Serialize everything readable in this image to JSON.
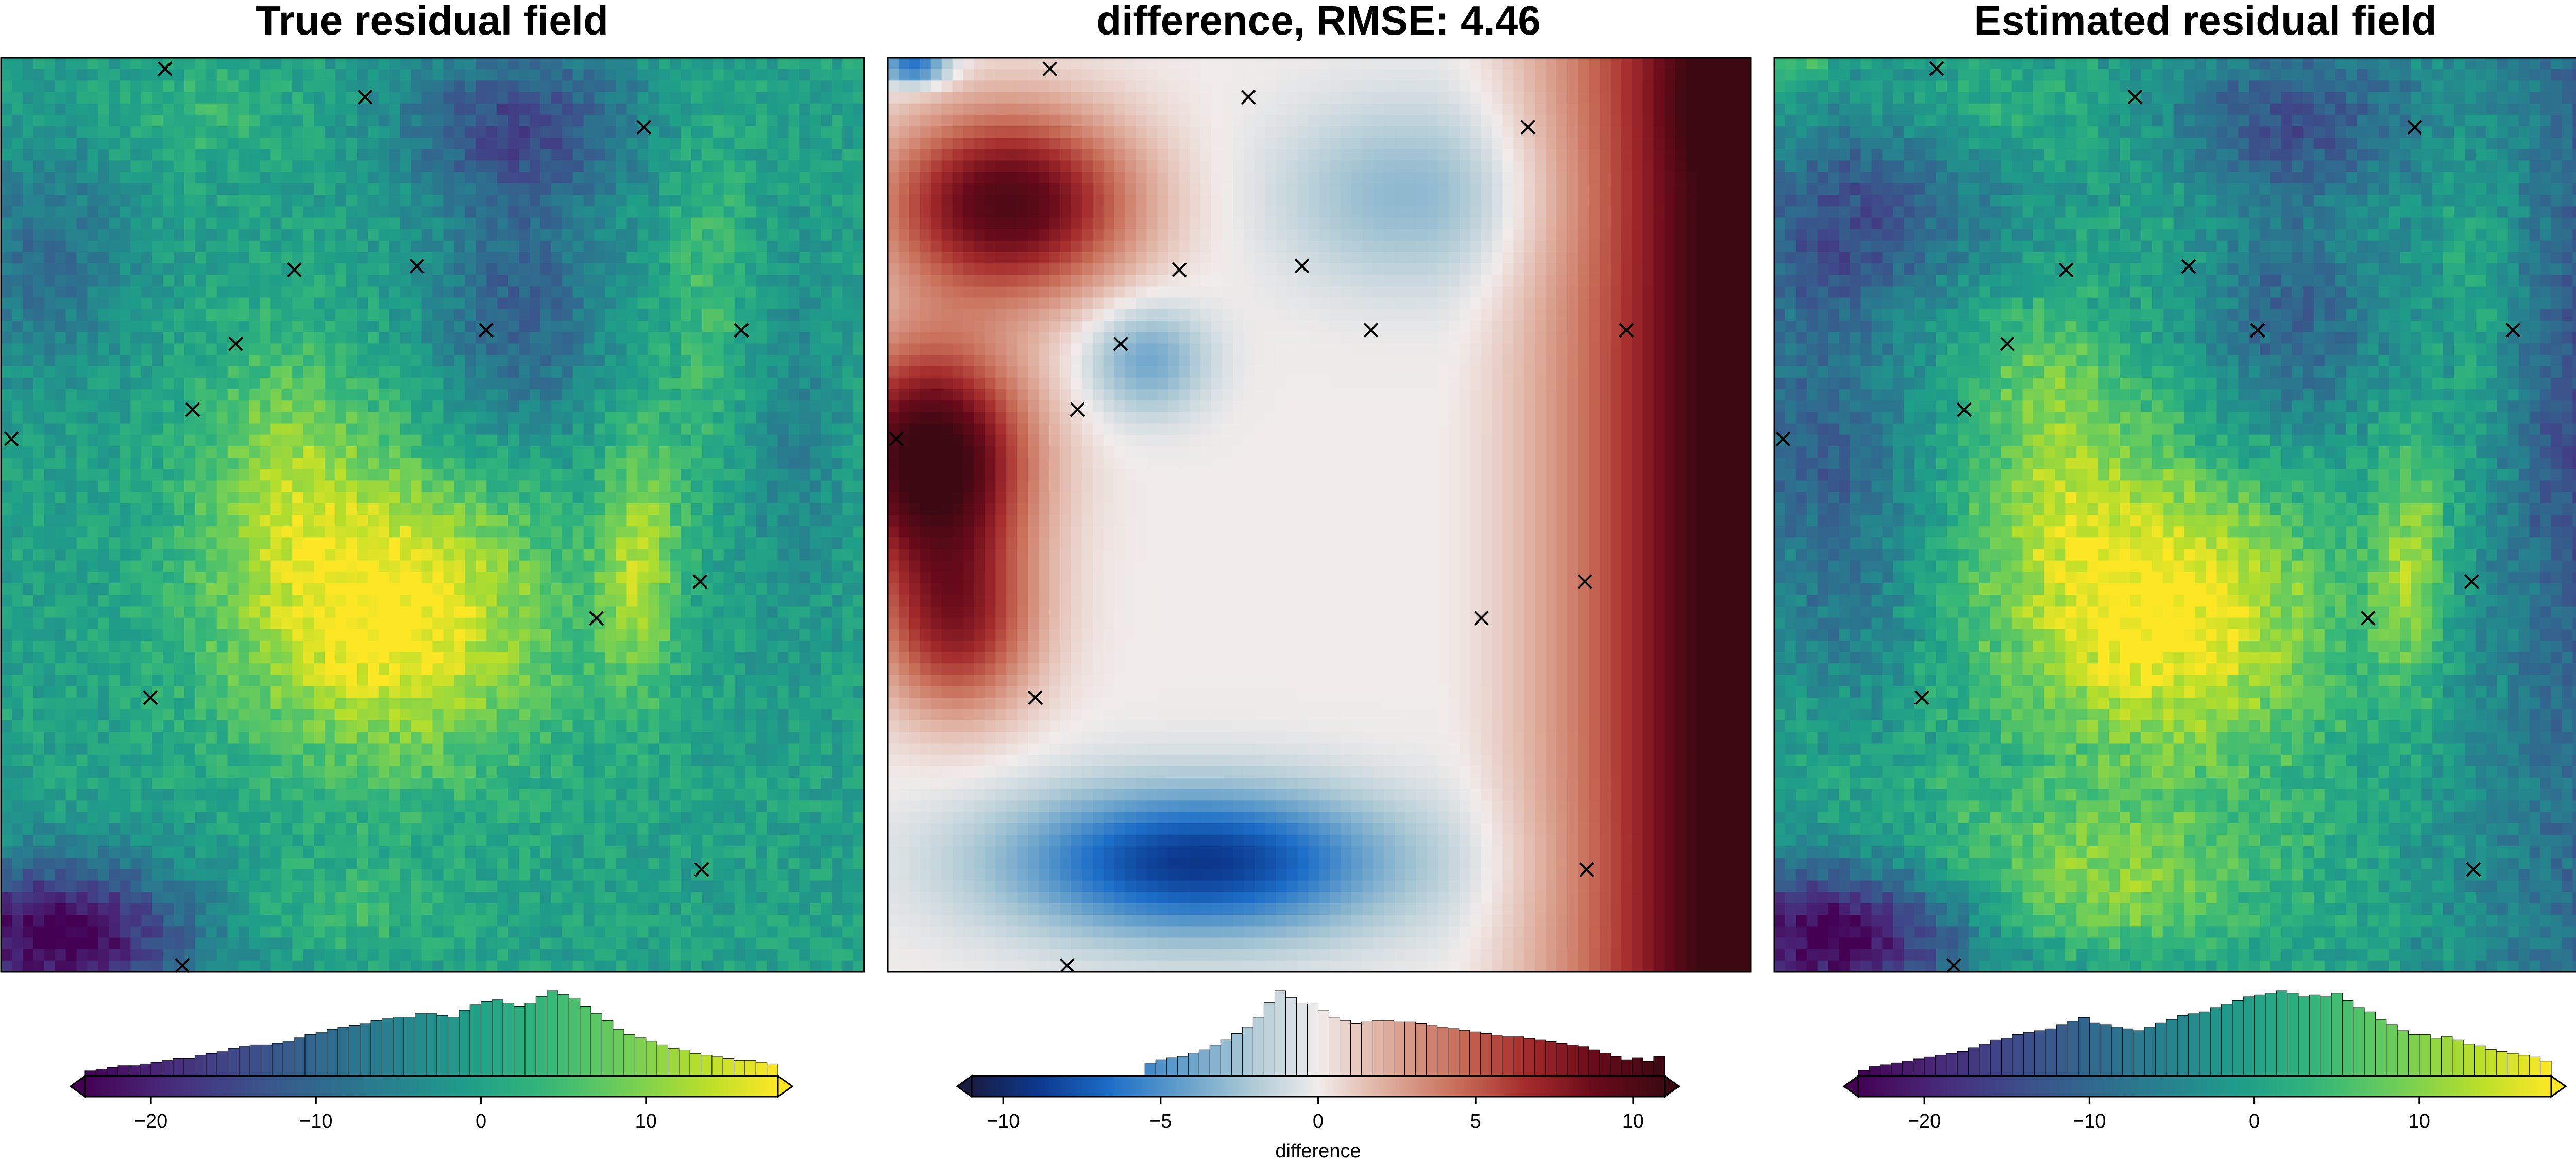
{
  "chart_data": [
    {
      "type": "heatmap",
      "title": "True residual field",
      "colormap": "viridis",
      "grid": false,
      "clim": [
        -24,
        18
      ],
      "colorbar": {
        "ticks": [
          -20,
          -10,
          0,
          10
        ],
        "tick_labels": [
          "−20",
          "−10",
          "0",
          "10"
        ],
        "label": "",
        "extend_min": true,
        "extend_max": true,
        "histogram": [
          3,
          4,
          5,
          6,
          6,
          7,
          8,
          9,
          10,
          10,
          12,
          13,
          14,
          16,
          17,
          18,
          18,
          19,
          20,
          22,
          24,
          25,
          27,
          28,
          29,
          30,
          32,
          33,
          34,
          34,
          36,
          36,
          35,
          34,
          38,
          41,
          43,
          44,
          42,
          40,
          42,
          46,
          49,
          47,
          45,
          40,
          36,
          32,
          27,
          24,
          22,
          20,
          18,
          16,
          15,
          13,
          12,
          11,
          10,
          9,
          9,
          8,
          7
        ]
      },
      "points": [
        {
          "x": 0.19,
          "y": 0.012
        },
        {
          "x": 0.422,
          "y": 0.043
        },
        {
          "x": 0.745,
          "y": 0.076
        },
        {
          "x": 0.34,
          "y": 0.232
        },
        {
          "x": 0.482,
          "y": 0.228
        },
        {
          "x": 0.272,
          "y": 0.313
        },
        {
          "x": 0.562,
          "y": 0.298
        },
        {
          "x": 0.858,
          "y": 0.298
        },
        {
          "x": 0.222,
          "y": 0.385
        },
        {
          "x": 0.012,
          "y": 0.417
        },
        {
          "x": 0.81,
          "y": 0.573
        },
        {
          "x": 0.69,
          "y": 0.613
        },
        {
          "x": 0.173,
          "y": 0.7
        },
        {
          "x": 0.812,
          "y": 0.888
        },
        {
          "x": 0.21,
          "y": 0.993
        }
      ]
    },
    {
      "type": "heatmap",
      "title": "difference, RMSE: 4.46",
      "colormap": "balance",
      "grid": false,
      "clim": [
        -11,
        11
      ],
      "colorbar": {
        "ticks": [
          -10,
          -5,
          0,
          5,
          10
        ],
        "tick_labels": [
          "−10",
          "−5",
          "0",
          "5",
          "10"
        ],
        "label": "difference",
        "extend_min": true,
        "extend_max": true,
        "histogram": [
          0,
          0,
          0,
          0,
          0,
          0,
          0,
          0,
          0,
          0,
          0,
          0,
          0,
          0,
          0,
          0,
          8,
          10,
          11,
          12,
          14,
          16,
          19,
          22,
          26,
          30,
          36,
          45,
          52,
          48,
          44,
          44,
          40,
          36,
          34,
          32,
          33,
          34,
          34,
          33,
          33,
          32,
          31,
          30,
          29,
          28,
          27,
          26,
          25,
          24,
          24,
          23,
          22,
          21,
          20,
          19,
          18,
          16,
          14,
          12,
          10,
          11,
          9,
          12
        ]
      },
      "points": [
        {
          "x": 0.188,
          "y": 0.012
        },
        {
          "x": 0.418,
          "y": 0.043
        },
        {
          "x": 0.742,
          "y": 0.076
        },
        {
          "x": 0.338,
          "y": 0.232
        },
        {
          "x": 0.48,
          "y": 0.228
        },
        {
          "x": 0.27,
          "y": 0.313
        },
        {
          "x": 0.56,
          "y": 0.298
        },
        {
          "x": 0.856,
          "y": 0.298
        },
        {
          "x": 0.22,
          "y": 0.385
        },
        {
          "x": 0.01,
          "y": 0.417
        },
        {
          "x": 0.808,
          "y": 0.573
        },
        {
          "x": 0.688,
          "y": 0.613
        },
        {
          "x": 0.171,
          "y": 0.7
        },
        {
          "x": 0.81,
          "y": 0.888
        },
        {
          "x": 0.208,
          "y": 0.993
        }
      ]
    },
    {
      "type": "heatmap",
      "title": "Estimated residual field",
      "colormap": "viridis",
      "grid": false,
      "clim": [
        -24,
        18
      ],
      "colorbar": {
        "ticks": [
          -20,
          -10,
          0,
          10
        ],
        "tick_labels": [
          "−20",
          "−10",
          "0",
          "10"
        ],
        "label": "",
        "extend_min": true,
        "extend_max": true,
        "histogram": [
          3,
          5,
          6,
          7,
          8,
          9,
          10,
          11,
          12,
          13,
          15,
          17,
          19,
          20,
          22,
          23,
          24,
          25,
          27,
          29,
          31,
          28,
          27,
          26,
          25,
          24,
          26,
          28,
          30,
          32,
          33,
          34,
          36,
          38,
          40,
          42,
          43,
          44,
          45,
          44,
          42,
          43,
          42,
          44,
          40,
          36,
          34,
          30,
          27,
          24,
          22,
          22,
          20,
          21,
          19,
          17,
          16,
          14,
          13,
          12,
          11,
          10,
          8
        ]
      },
      "points": [
        {
          "x": 0.188,
          "y": 0.012
        },
        {
          "x": 0.418,
          "y": 0.043
        },
        {
          "x": 0.742,
          "y": 0.076
        },
        {
          "x": 0.338,
          "y": 0.232
        },
        {
          "x": 0.48,
          "y": 0.228
        },
        {
          "x": 0.27,
          "y": 0.313
        },
        {
          "x": 0.56,
          "y": 0.298
        },
        {
          "x": 0.856,
          "y": 0.298
        },
        {
          "x": 0.22,
          "y": 0.385
        },
        {
          "x": 0.01,
          "y": 0.417
        },
        {
          "x": 0.808,
          "y": 0.573
        },
        {
          "x": 0.688,
          "y": 0.613
        },
        {
          "x": 0.171,
          "y": 0.7
        },
        {
          "x": 0.81,
          "y": 0.888
        },
        {
          "x": 0.208,
          "y": 0.993
        }
      ]
    }
  ]
}
